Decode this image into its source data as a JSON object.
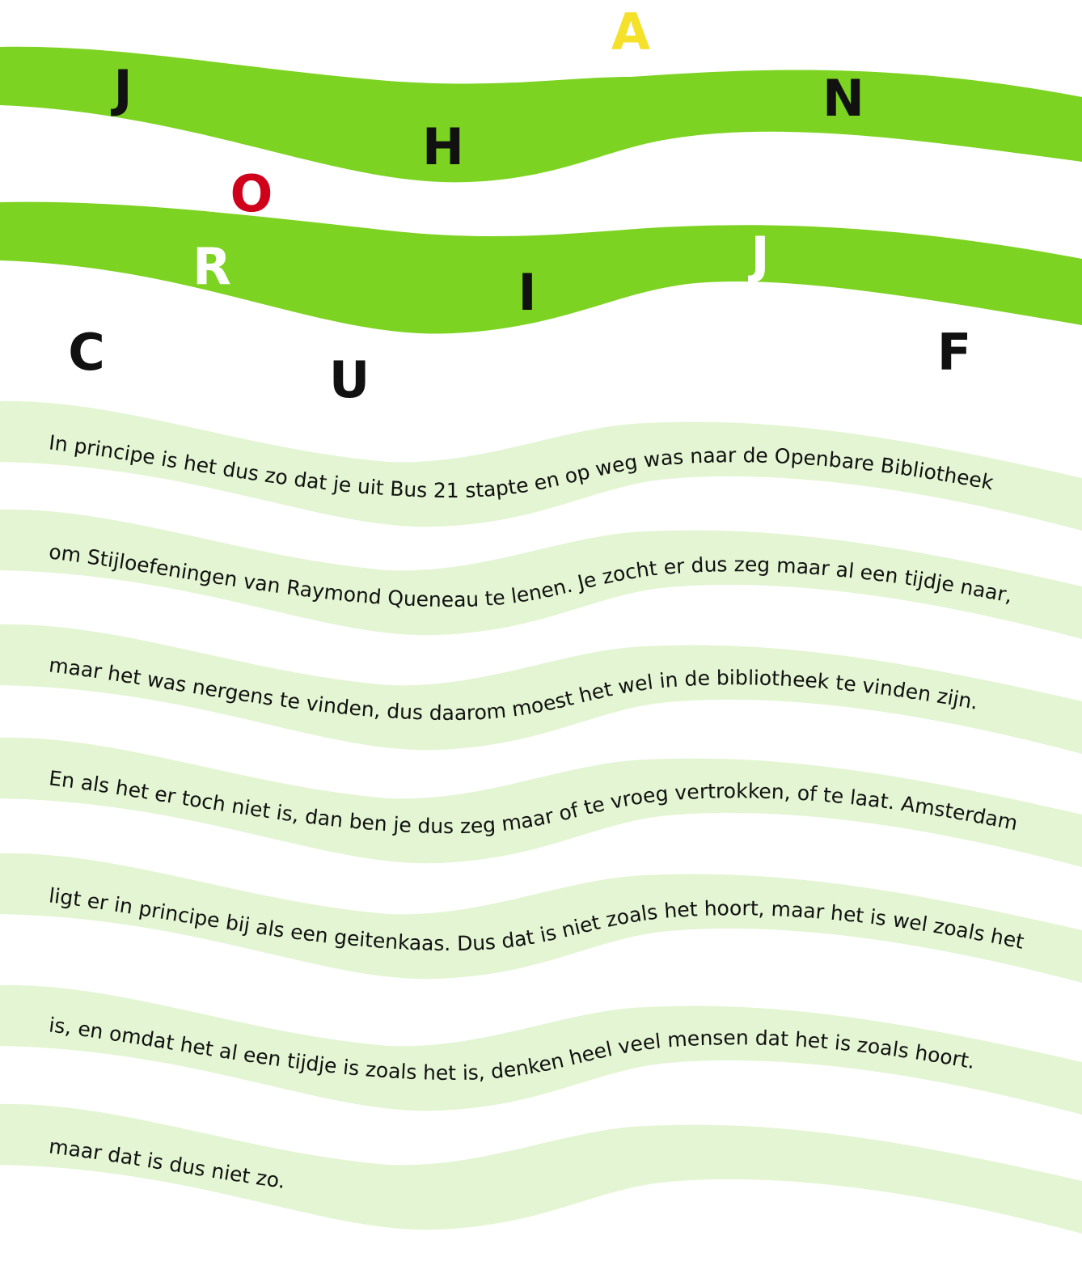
{
  "colors": {
    "band": "#7dd321",
    "band_light": "#e3f5d2",
    "letter_default": "#111111",
    "letter_red": "#d0021b",
    "letter_yellow": "#f5e02a",
    "letter_white": "#ffffff"
  },
  "title_letters": [
    {
      "char": "J",
      "color": "#111111"
    },
    {
      "char": "A",
      "color": "#f5e02a"
    },
    {
      "char": "N",
      "color": "#111111"
    },
    {
      "char": "H",
      "color": "#111111"
    },
    {
      "char": "O",
      "color": "#d0021b"
    },
    {
      "char": "R",
      "color": "#ffffff"
    },
    {
      "char": "J",
      "color": "#ffffff"
    },
    {
      "char": "I",
      "color": "#111111"
    },
    {
      "char": "C",
      "color": "#111111"
    },
    {
      "char": "U",
      "color": "#111111"
    },
    {
      "char": "F",
      "color": "#111111"
    }
  ],
  "text_lines": [
    "In principe is het dus zo dat je uit Bus 21 stapte en op weg was naar de Openbare Bibliotheek",
    "om Stijloefeningen van Raymond Queneau te lenen. Je zocht er dus zeg maar al een tijdje naar,",
    "maar het was nergens te vinden, dus daarom moest het wel in de bibliotheek te vinden zijn.",
    "En als het er toch niet is, dan ben je dus zeg maar of te vroeg vertrokken, of te laat. Amsterdam",
    "ligt er in principe bij als een geitenkaas.  Dus dat is niet zoals het hoort, maar het is wel zoals het",
    "is, en omdat het al een tijdje is zoals het is, denken heel veel mensen dat het is zoals hoort.",
    "maar dat is dus niet zo."
  ]
}
